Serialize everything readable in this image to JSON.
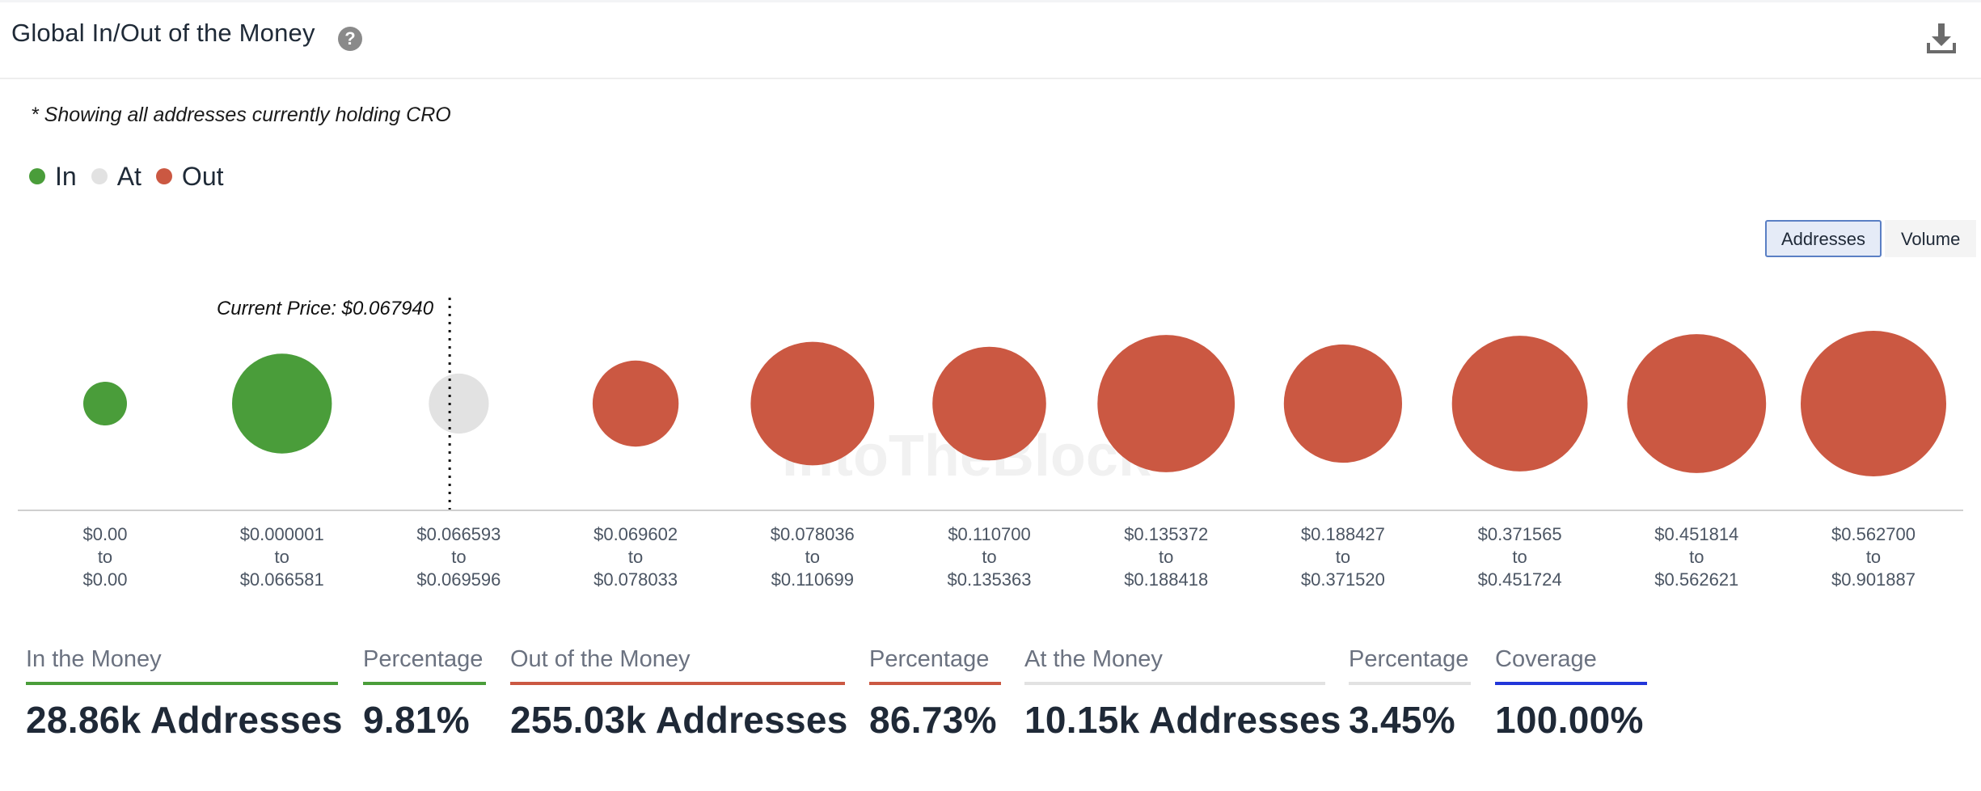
{
  "header": {
    "title": "Global In/Out of the Money",
    "help_icon": "question-circle-icon",
    "download_icon": "download-icon"
  },
  "note": "* Showing all addresses currently holding CRO",
  "legend": [
    {
      "label": "In",
      "color": "#4a9d3a"
    },
    {
      "label": "At",
      "color": "#e2e2e2"
    },
    {
      "label": "Out",
      "color": "#cb5842"
    }
  ],
  "toggle": {
    "active": "Addresses",
    "other": "Volume"
  },
  "watermark": "IntoTheBlock",
  "chart_data": {
    "type": "bubble",
    "title": "Global In/Out of the Money",
    "current_price_label": "Current Price: $0.067940",
    "current_price": 0.06794,
    "size_metric": "addresses (relative, estimated from bubble area)",
    "categories": [
      {
        "from": "$0.00",
        "to": "$0.00",
        "status": "In",
        "relative_size": 0.09
      },
      {
        "from": "$0.000001",
        "to": "$0.066581",
        "status": "In",
        "relative_size": 0.47
      },
      {
        "from": "$0.066593",
        "to": "$0.069596",
        "status": "At",
        "relative_size": 0.17
      },
      {
        "from": "$0.069602",
        "to": "$0.078033",
        "status": "Out",
        "relative_size": 0.35
      },
      {
        "from": "$0.078036",
        "to": "$0.110699",
        "status": "Out",
        "relative_size": 0.72
      },
      {
        "from": "$0.110700",
        "to": "$0.135363",
        "status": "Out",
        "relative_size": 0.61
      },
      {
        "from": "$0.135372",
        "to": "$0.188418",
        "status": "Out",
        "relative_size": 0.89
      },
      {
        "from": "$0.188427",
        "to": "$0.371520",
        "status": "Out",
        "relative_size": 0.66
      },
      {
        "from": "$0.371565",
        "to": "$0.451724",
        "status": "Out",
        "relative_size": 0.87
      },
      {
        "from": "$0.451814",
        "to": "$0.562621",
        "status": "Out",
        "relative_size": 0.91
      },
      {
        "from": "$0.562700",
        "to": "$0.901887",
        "status": "Out",
        "relative_size": 1.0
      }
    ],
    "tick_connector": "to"
  },
  "stats": [
    {
      "label": "In the Money",
      "value": "28.86k Addresses",
      "color": "#4a9d3a"
    },
    {
      "label": "Percentage",
      "value": "9.81%",
      "color": "#4a9d3a"
    },
    {
      "label": "Out of the Money",
      "value": "255.03k Addresses",
      "color": "#cb5842"
    },
    {
      "label": "Percentage",
      "value": "86.73%",
      "color": "#cb5842"
    },
    {
      "label": "At the Money",
      "value": "10.15k Addresses",
      "color": "#e2e2e2"
    },
    {
      "label": "Percentage",
      "value": "3.45%",
      "color": "#e2e2e2"
    },
    {
      "label": "Coverage",
      "value": "100.00%",
      "color": "#2236d9"
    }
  ]
}
